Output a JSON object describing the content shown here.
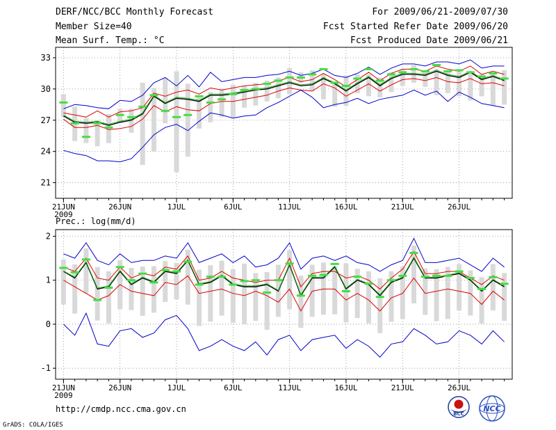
{
  "header": {
    "title": "DERF/NCC/BCC Monthly Forecast",
    "member_size": "Member Size=40",
    "variable": "Mean Surf. Temp.: °C",
    "period": "For 2009/06/21-2009/07/30",
    "start_ref": "Fcst Started Refer Date 2009/06/20",
    "produced": "Fcst Produced Date 2009/06/21"
  },
  "footer": {
    "url": "http://cmdp.ncc.cma.gov.cn",
    "credit": "GrADS: COLA/IGES",
    "logo_left_text": "BCC",
    "logo_right_text": "NCC"
  },
  "colors": {
    "max_min": "#0000cc",
    "spread": "#dd0000",
    "mean": "#000000",
    "ensemble": "#22aa22",
    "obs": "#44dd44",
    "box": "#d9d9d9",
    "grid": "#888888"
  },
  "chart_data": [
    {
      "type": "line",
      "title": "Mean Surf. Temp.: °C",
      "xlabel": "",
      "ylabel": "°C",
      "ylim": [
        19.5,
        34
      ],
      "yticks": [
        21,
        24,
        27,
        30,
        33
      ],
      "xticks": [
        {
          "day": 1,
          "label": "21JUN"
        },
        {
          "day": 6,
          "label": "26JUN"
        },
        {
          "day": 11,
          "label": "1JUL"
        },
        {
          "day": 16,
          "label": "6JUL"
        },
        {
          "day": 21,
          "label": "11JUL"
        },
        {
          "day": 26,
          "label": "16JUL"
        },
        {
          "day": 31,
          "label": "21JUL"
        },
        {
          "day": 36,
          "label": "26JUL"
        }
      ],
      "xlim": [
        0.3,
        40.7
      ],
      "x_sublabel": "2009",
      "grid": true,
      "series": [
        {
          "name": "max",
          "values": [
            28.1,
            28.5,
            28.4,
            28.2,
            28.1,
            28.9,
            28.8,
            29.4,
            30.6,
            31.1,
            30.3,
            31.3,
            30.2,
            31.6,
            30.7,
            30.9,
            31.1,
            31.1,
            31.3,
            31.4,
            31.7,
            31.3,
            31.5,
            31.9,
            31.3,
            31.1,
            31.5,
            32.1,
            31.4,
            32.0,
            32.4,
            32.4,
            32.2,
            32.6,
            32.6,
            32.4,
            32.8,
            32.0,
            32.2,
            32.2
          ]
        },
        {
          "name": "upper",
          "values": [
            27.7,
            27.5,
            27.3,
            27.9,
            27.3,
            27.8,
            27.9,
            28.2,
            29.6,
            29.3,
            29.7,
            29.9,
            29.5,
            30.1,
            29.9,
            30.1,
            30.3,
            30.4,
            30.5,
            30.8,
            31.1,
            30.7,
            30.9,
            31.5,
            30.9,
            30.2,
            30.9,
            31.6,
            30.8,
            31.5,
            31.9,
            31.9,
            31.7,
            32.2,
            31.9,
            31.7,
            32.2,
            31.4,
            31.7,
            31.4
          ]
        },
        {
          "name": "mean",
          "values": [
            27.4,
            26.8,
            26.7,
            26.8,
            26.5,
            26.8,
            27.0,
            27.6,
            29.3,
            28.6,
            29.1,
            29.0,
            28.8,
            29.4,
            29.4,
            29.5,
            29.7,
            29.9,
            30.0,
            30.3,
            30.6,
            30.3,
            30.4,
            31.0,
            30.5,
            29.8,
            30.5,
            31.1,
            30.3,
            31.0,
            31.4,
            31.4,
            31.3,
            31.7,
            31.3,
            31.1,
            31.6,
            30.9,
            31.2,
            30.8
          ]
        },
        {
          "name": "ensemble",
          "values": [
            27.5,
            26.9,
            26.8,
            26.9,
            26.6,
            26.9,
            27.1,
            27.7,
            29.4,
            28.7,
            29.2,
            29.1,
            28.9,
            29.5,
            29.5,
            29.6,
            29.8,
            30.0,
            30.1,
            30.4,
            30.7,
            30.4,
            30.5,
            31.1,
            30.6,
            29.9,
            30.6,
            31.2,
            30.4,
            31.1,
            31.5,
            31.5,
            31.4,
            31.8,
            31.4,
            31.2,
            31.7,
            31.0,
            31.3,
            30.9
          ]
        },
        {
          "name": "lower",
          "values": [
            27.1,
            26.3,
            26.3,
            26.5,
            26.1,
            26.2,
            26.4,
            27.1,
            28.4,
            27.8,
            28.3,
            28.0,
            27.9,
            28.6,
            28.8,
            28.8,
            29.0,
            29.2,
            29.4,
            29.8,
            30.1,
            29.9,
            29.8,
            30.5,
            30.1,
            29.3,
            29.9,
            30.5,
            29.8,
            30.4,
            30.9,
            31.0,
            30.8,
            31.1,
            30.7,
            30.6,
            31.0,
            30.5,
            30.6,
            30.3
          ]
        },
        {
          "name": "min",
          "values": [
            24.1,
            23.8,
            23.6,
            23.1,
            23.1,
            23.0,
            23.3,
            24.4,
            25.6,
            26.3,
            26.6,
            26.0,
            26.9,
            27.7,
            27.5,
            27.2,
            27.4,
            27.5,
            28.2,
            28.7,
            29.3,
            29.9,
            29.2,
            28.2,
            28.5,
            28.7,
            29.1,
            28.6,
            29.0,
            29.2,
            29.4,
            29.9,
            29.4,
            29.8,
            28.8,
            29.7,
            29.2,
            28.6,
            28.4,
            28.2
          ]
        }
      ],
      "obs": [
        28.7,
        26.7,
        25.4,
        26.7,
        26.3,
        27.5,
        27.3,
        28.3,
        29.4,
        27.9,
        27.3,
        27.5,
        29.3,
        28.7,
        29.0,
        29.5,
        29.9,
        30.0,
        30.5,
        30.8,
        31.1,
        31.1,
        31.4,
        31.9,
        30.6,
        30.3,
        31.0,
        31.9,
        30.8,
        31.4,
        31.6,
        31.9,
        31.7,
        32.3,
        31.7,
        31.8,
        31.6,
        31.2,
        31.5,
        31.0
      ],
      "bars": [
        [
          27.3,
          29.5
        ],
        [
          25.0,
          28.3
        ],
        [
          24.8,
          27.2
        ],
        [
          24.5,
          27.0
        ],
        [
          24.8,
          27.6
        ],
        [
          26.8,
          28.1
        ],
        [
          25.8,
          28.1
        ],
        [
          22.7,
          30.6
        ],
        [
          24.0,
          30.1
        ],
        [
          26.7,
          31.1
        ],
        [
          22.0,
          31.7
        ],
        [
          23.5,
          30.5
        ],
        [
          26.2,
          29.2
        ],
        [
          26.8,
          29.7
        ],
        [
          27.3,
          30.0
        ],
        [
          27.3,
          30.4
        ],
        [
          28.2,
          30.3
        ],
        [
          28.4,
          30.6
        ],
        [
          28.8,
          30.8
        ],
        [
          29.1,
          31.1
        ],
        [
          29.5,
          32.0
        ],
        [
          30.6,
          31.6
        ],
        [
          29.8,
          31.8
        ],
        [
          29.0,
          31.4
        ],
        [
          28.3,
          30.7
        ],
        [
          28.4,
          31.3
        ],
        [
          29.6,
          31.4
        ],
        [
          29.3,
          31.4
        ],
        [
          29.2,
          31.1
        ],
        [
          29.7,
          31.6
        ],
        [
          30.3,
          31.9
        ],
        [
          30.6,
          32.3
        ],
        [
          30.2,
          31.6
        ],
        [
          29.4,
          31.9
        ],
        [
          29.6,
          31.7
        ],
        [
          29.3,
          31.8
        ],
        [
          28.9,
          31.6
        ],
        [
          29.3,
          31.4
        ],
        [
          28.4,
          31.5
        ],
        [
          28.5,
          31.8
        ]
      ]
    },
    {
      "type": "line",
      "title": "Prec.: log(mm/d)",
      "xlabel": "",
      "ylabel": "log(mm/d)",
      "ylim": [
        -1.25,
        2.15
      ],
      "yticks": [
        -1,
        0,
        1,
        2
      ],
      "xticks": [
        {
          "day": 1,
          "label": "21JUN"
        },
        {
          "day": 6,
          "label": "26JUN"
        },
        {
          "day": 11,
          "label": "1JUL"
        },
        {
          "day": 16,
          "label": "6JUL"
        },
        {
          "day": 21,
          "label": "11JUL"
        },
        {
          "day": 26,
          "label": "16JUL"
        },
        {
          "day": 31,
          "label": "21JUL"
        },
        {
          "day": 36,
          "label": "26JUL"
        }
      ],
      "xlim": [
        0.3,
        40.7
      ],
      "x_sublabel": "2009",
      "grid": true,
      "series": [
        {
          "name": "max",
          "values": [
            1.6,
            1.5,
            1.85,
            1.45,
            1.35,
            1.6,
            1.4,
            1.45,
            1.45,
            1.55,
            1.5,
            1.85,
            1.4,
            1.5,
            1.6,
            1.4,
            1.55,
            1.3,
            1.35,
            1.5,
            1.85,
            1.25,
            1.5,
            1.55,
            1.45,
            1.55,
            1.4,
            1.35,
            1.2,
            1.35,
            1.45,
            1.95,
            1.4,
            1.4,
            1.45,
            1.5,
            1.35,
            1.2,
            1.5,
            1.3
          ]
        },
        {
          "name": "upper",
          "values": [
            1.3,
            1.2,
            1.5,
            1.05,
            1.0,
            1.3,
            1.05,
            1.15,
            1.1,
            1.3,
            1.25,
            1.55,
            1.0,
            1.05,
            1.2,
            1.05,
            1.0,
            0.95,
            1.0,
            1.0,
            1.5,
            0.85,
            1.15,
            1.2,
            1.2,
            1.05,
            1.1,
            1.0,
            0.8,
            1.05,
            1.25,
            1.65,
            1.15,
            1.15,
            1.2,
            1.2,
            1.05,
            0.9,
            1.1,
            1.0
          ]
        },
        {
          "name": "mean",
          "values": [
            1.2,
            1.05,
            1.4,
            0.8,
            0.85,
            1.2,
            0.9,
            1.05,
            0.95,
            1.2,
            1.15,
            1.45,
            0.9,
            0.95,
            1.1,
            0.9,
            0.85,
            0.85,
            0.9,
            0.75,
            1.35,
            0.65,
            1.05,
            1.05,
            1.3,
            0.8,
            1.0,
            0.9,
            0.65,
            0.95,
            1.05,
            1.5,
            1.05,
            1.05,
            1.1,
            1.15,
            1.0,
            0.75,
            1.0,
            0.85
          ]
        },
        {
          "name": "ensemble",
          "values": [
            1.21,
            1.07,
            1.42,
            0.82,
            0.87,
            1.22,
            0.92,
            1.07,
            0.97,
            1.22,
            1.17,
            1.47,
            0.92,
            0.97,
            1.12,
            0.92,
            0.87,
            0.87,
            0.92,
            0.77,
            1.37,
            0.67,
            1.07,
            1.07,
            1.32,
            0.82,
            1.02,
            0.92,
            0.67,
            0.97,
            1.07,
            1.52,
            1.07,
            1.07,
            1.12,
            1.17,
            1.02,
            0.77,
            1.02,
            0.87
          ]
        },
        {
          "name": "lower",
          "values": [
            1.0,
            0.85,
            0.7,
            0.55,
            0.65,
            0.9,
            0.75,
            0.7,
            0.65,
            0.95,
            0.9,
            1.1,
            0.7,
            0.75,
            0.8,
            0.7,
            0.65,
            0.75,
            0.65,
            0.5,
            0.8,
            0.3,
            0.75,
            0.8,
            0.8,
            0.55,
            0.7,
            0.55,
            0.3,
            0.6,
            0.7,
            1.05,
            0.7,
            0.75,
            0.8,
            0.75,
            0.7,
            0.45,
            0.75,
            0.55
          ]
        },
        {
          "name": "min",
          "values": [
            0.0,
            -0.25,
            0.25,
            -0.45,
            -0.5,
            -0.15,
            -0.1,
            -0.3,
            -0.2,
            0.1,
            0.2,
            -0.1,
            -0.6,
            -0.5,
            -0.35,
            -0.5,
            -0.6,
            -0.4,
            -0.7,
            -0.35,
            -0.25,
            -0.6,
            -0.35,
            -0.3,
            -0.25,
            -0.55,
            -0.35,
            -0.5,
            -0.75,
            -0.45,
            -0.4,
            -0.1,
            -0.25,
            -0.45,
            -0.4,
            -0.15,
            -0.25,
            -0.45,
            -0.15,
            -0.4
          ]
        }
      ],
      "obs": [
        1.28,
        1.18,
        1.47,
        0.55,
        0.83,
        1.3,
        1.0,
        1.15,
        0.95,
        1.23,
        1.2,
        1.42,
        0.9,
        1.08,
        1.08,
        0.9,
        0.98,
        1.0,
        0.72,
        1.0,
        1.38,
        0.65,
        1.1,
        1.12,
        1.37,
        0.75,
        1.08,
        0.92,
        0.62,
        1.0,
        1.1,
        1.62,
        1.08,
        1.1,
        1.1,
        1.2,
        1.05,
        0.8,
        1.07,
        0.92
      ]
    }
  ]
}
